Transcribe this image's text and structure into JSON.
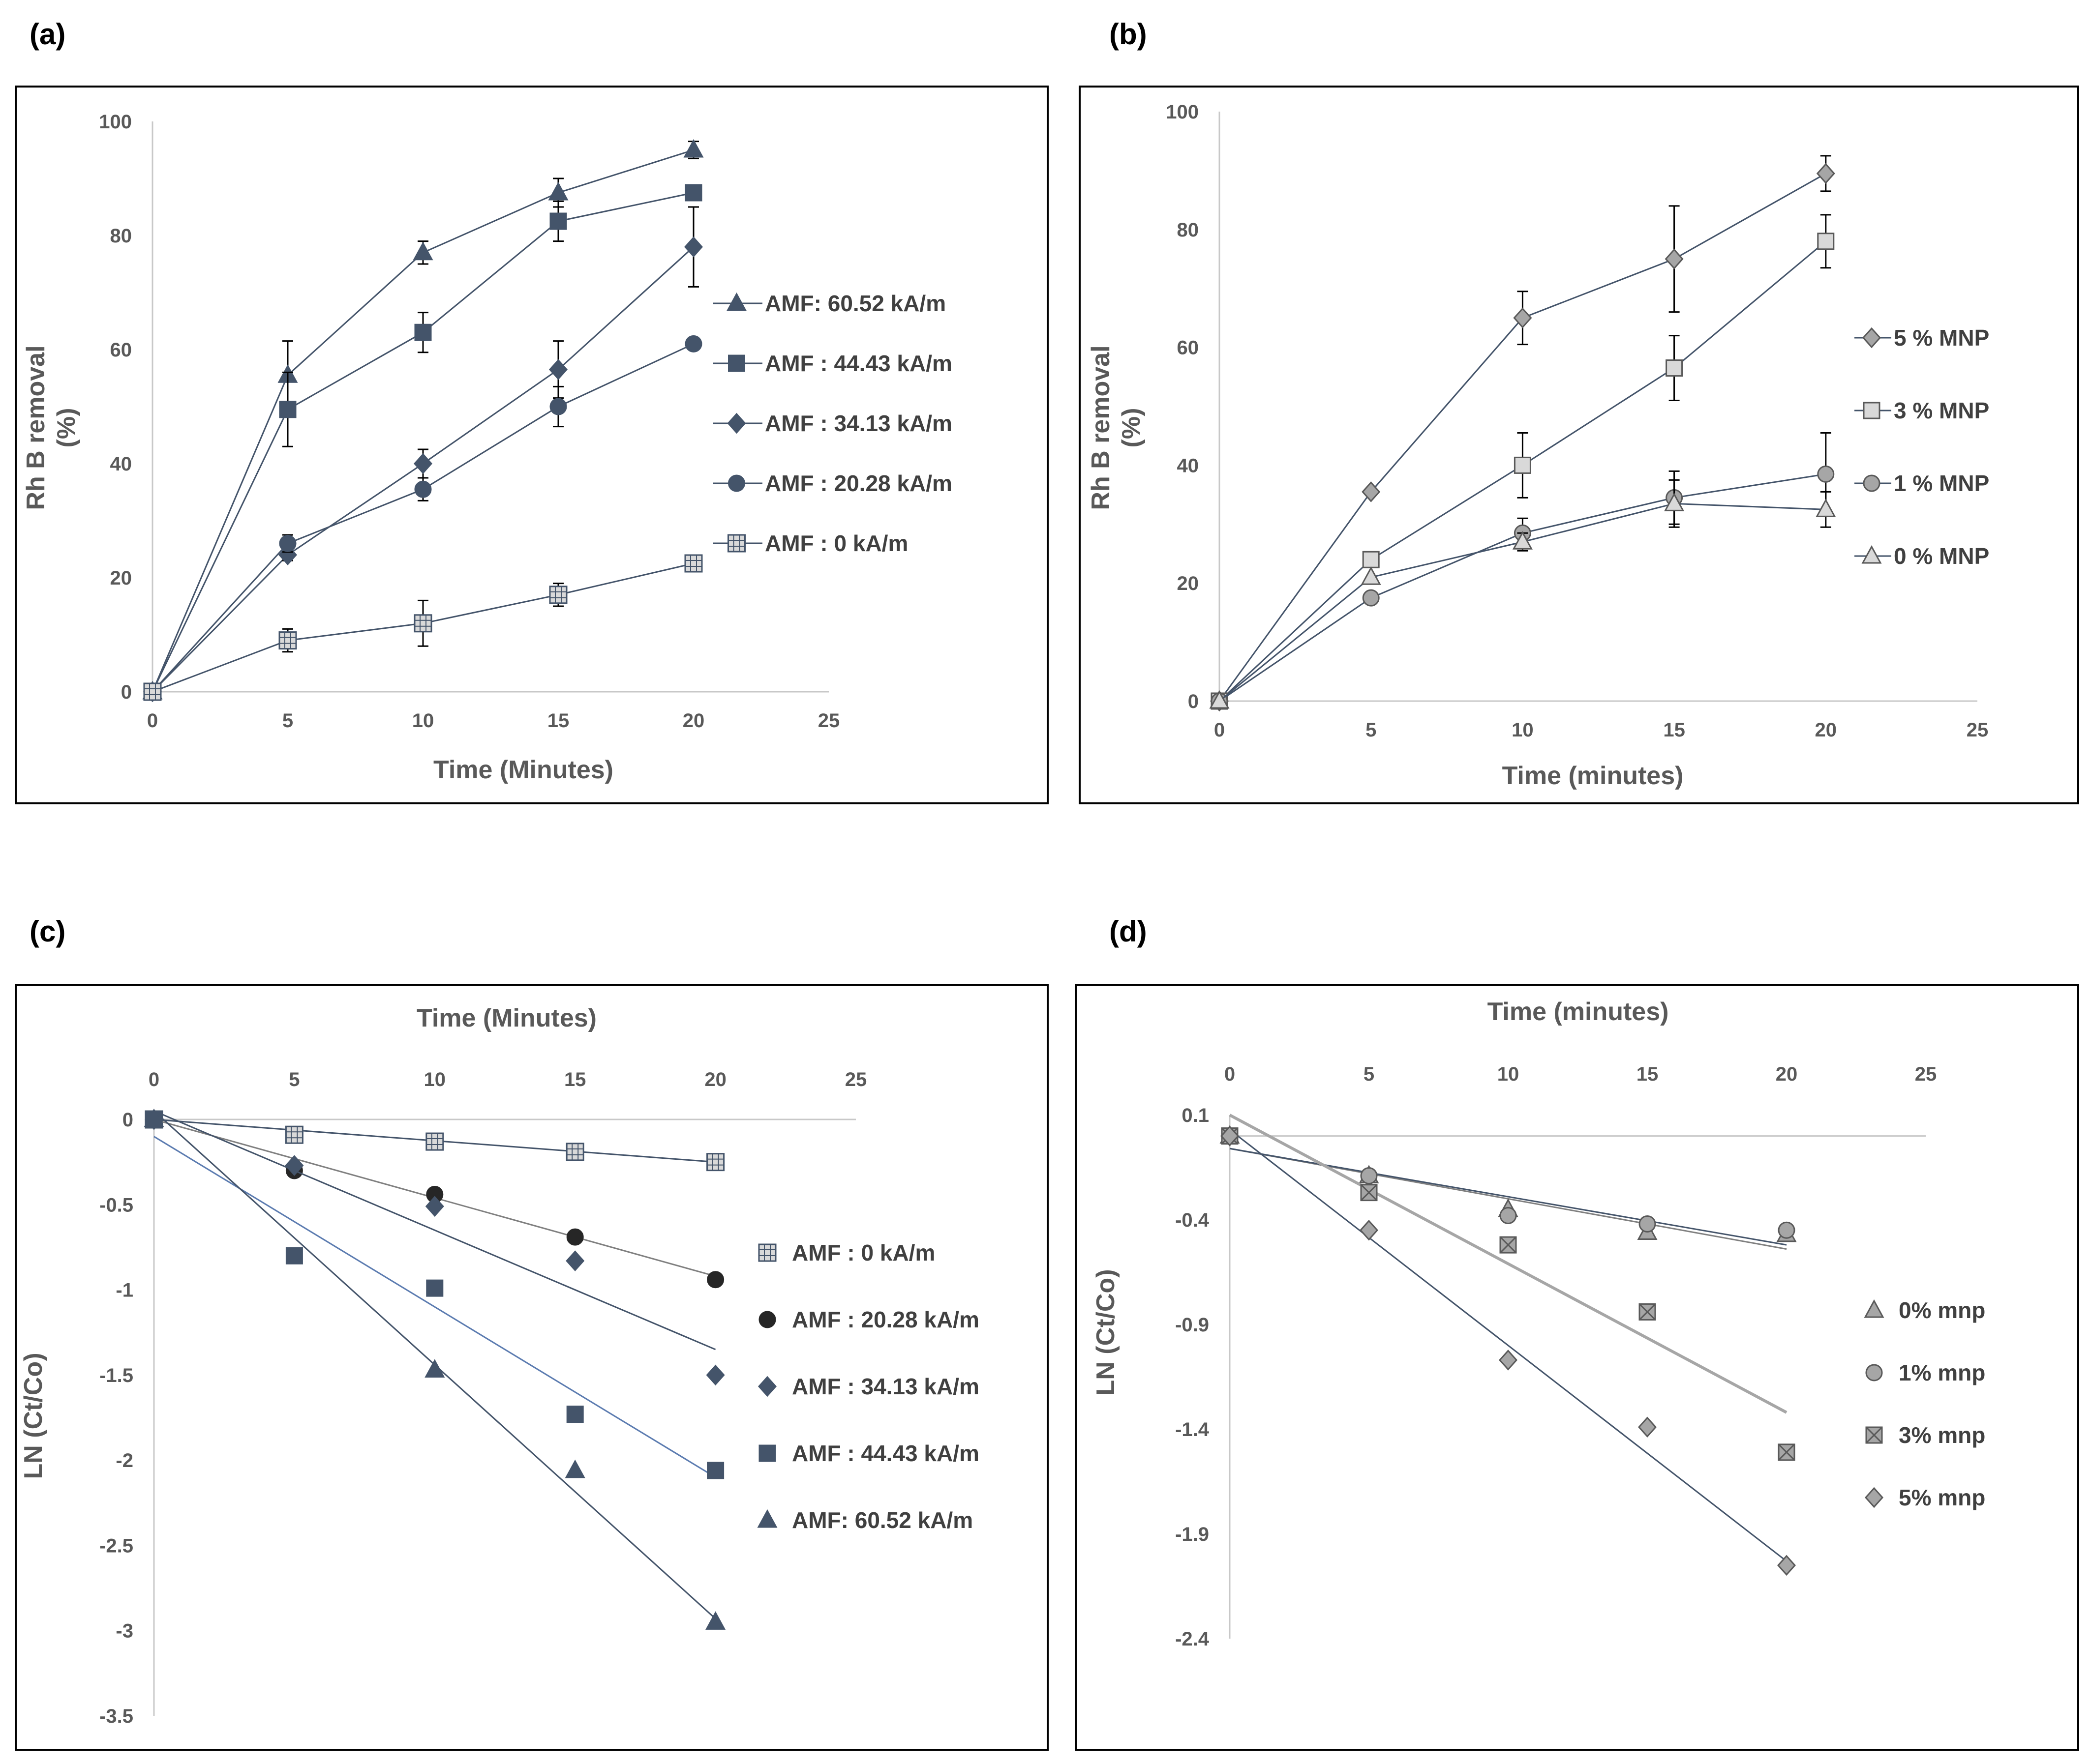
{
  "figure": {
    "colors": {
      "dark": "#44546a",
      "grey": "#7f7f7f",
      "light_fill": "#d9d9d9",
      "mid_fill": "#a6a6a6",
      "blue_line": "#5b7bb0",
      "axis": "#c8c8c8",
      "text": "#595959"
    }
  },
  "chart_data": [
    {
      "panel_label": "(a)",
      "type": "line",
      "xlabel": "Time (Minutes)",
      "ylabel": "Rh B removal\n(%)",
      "xlim": [
        0,
        25
      ],
      "ylim": [
        0,
        100
      ],
      "xticks": [
        0,
        5,
        10,
        15,
        20,
        25
      ],
      "yticks": [
        0,
        20,
        40,
        60,
        80,
        100
      ],
      "x_axis_position": "bottom",
      "legend_position": "right",
      "x": [
        0,
        5,
        10,
        15,
        20
      ],
      "series": [
        {
          "name": "AMF: 60.52 kA/m",
          "marker": "triangle",
          "fill": "dark",
          "values": [
            0,
            55.5,
            77,
            87.5,
            95
          ],
          "errors": [
            0,
            6,
            2,
            2.5,
            1.5
          ]
        },
        {
          "name": "AMF : 44.43 kA/m",
          "marker": "square",
          "fill": "dark",
          "values": [
            0,
            49.5,
            63,
            82.5,
            87.5
          ],
          "errors": [
            0,
            6.5,
            3.5,
            3.5,
            0
          ]
        },
        {
          "name": "AMF : 34.13 kA/m",
          "marker": "diamond",
          "fill": "dark",
          "values": [
            0,
            24,
            40,
            56.5,
            78
          ],
          "errors": [
            0,
            1,
            2.5,
            5,
            7
          ]
        },
        {
          "name": "AMF : 20.28 kA/m",
          "marker": "circle",
          "fill": "dark",
          "values": [
            0,
            26,
            35.5,
            50,
            61
          ],
          "errors": [
            0,
            1.5,
            2,
            3.5,
            0
          ]
        },
        {
          "name": "AMF : 0 kA/m",
          "marker": "gridsquare",
          "fill": "light",
          "values": [
            0,
            9,
            12,
            17,
            22.5
          ],
          "errors": [
            0,
            2,
            4,
            2,
            1
          ]
        }
      ]
    },
    {
      "panel_label": "(b)",
      "type": "line",
      "xlabel": "Time (minutes)",
      "ylabel": "Rh B removal\n(%)",
      "xlim": [
        0,
        25
      ],
      "ylim": [
        0,
        100
      ],
      "xticks": [
        0,
        5,
        10,
        15,
        20,
        25
      ],
      "yticks": [
        0,
        20,
        40,
        60,
        80,
        100
      ],
      "x_axis_position": "bottom",
      "legend_position": "right",
      "x": [
        0,
        5,
        10,
        15,
        20
      ],
      "series": [
        {
          "name": "5 % MNP",
          "marker": "diamond",
          "fill": "mid",
          "values": [
            0,
            35.5,
            65,
            75,
            89.5
          ],
          "errors": [
            0,
            0,
            4.5,
            9,
            3
          ]
        },
        {
          "name": "3 % MNP",
          "marker": "square",
          "fill": "light",
          "values": [
            0,
            24,
            40,
            56.5,
            78
          ],
          "errors": [
            0,
            0,
            5.5,
            5.5,
            4.5
          ]
        },
        {
          "name": "1 % MNP",
          "marker": "circle",
          "fill": "mid",
          "values": [
            0,
            17.5,
            28.5,
            34.5,
            38.5
          ],
          "errors": [
            0,
            0,
            2.5,
            4.5,
            7
          ]
        },
        {
          "name": "0 % MNP",
          "marker": "triangle",
          "fill": "light",
          "values": [
            0,
            21,
            27,
            33.5,
            32.5
          ],
          "errors": [
            0,
            0,
            1.5,
            4,
            3
          ]
        }
      ]
    },
    {
      "panel_label": "(c)",
      "type": "scatter",
      "xlabel": "Time (Minutes)",
      "ylabel": "LN (Ct/Co)",
      "xlim": [
        0,
        25
      ],
      "ylim": [
        -3.5,
        0
      ],
      "xticks": [
        0,
        5,
        10,
        15,
        20,
        25
      ],
      "yticks": [
        0,
        -0.5,
        -1,
        -1.5,
        -2,
        -2.5,
        -3,
        -3.5
      ],
      "x_axis_position": "top",
      "legend_position": "right",
      "x": [
        0,
        5,
        10,
        15,
        20
      ],
      "series": [
        {
          "name": "AMF : 0 kA/m",
          "marker": "gridsquare",
          "fill": "light",
          "values": [
            0,
            -0.09,
            -0.13,
            -0.19,
            -0.25
          ],
          "trend": [
            0,
            -0.0125
          ],
          "trend_color": "dark"
        },
        {
          "name": "AMF : 20.28 kA/m",
          "marker": "circle",
          "fill": "black",
          "values": [
            0,
            -0.3,
            -0.44,
            -0.69,
            -0.94
          ],
          "trend": [
            0,
            -0.046
          ],
          "trend_color": "grey"
        },
        {
          "name": "AMF : 34.13 kA/m",
          "marker": "diamond",
          "fill": "dark",
          "values": [
            0,
            -0.27,
            -0.51,
            -0.83,
            -1.5
          ],
          "trend": [
            0.05,
            -0.07
          ],
          "trend_color": "dark"
        },
        {
          "name": "AMF : 44.43 kA/m",
          "marker": "square",
          "fill": "dark",
          "values": [
            0,
            -0.8,
            -0.99,
            -1.73,
            -2.06
          ],
          "trend": [
            -0.1,
            -0.1
          ],
          "trend_color": "blue"
        },
        {
          "name": "AMF: 60.52 kA/m",
          "marker": "triangle",
          "fill": "dark",
          "values": [
            0,
            null,
            -1.47,
            -2.06,
            -2.95
          ],
          "trend": [
            0.05,
            -0.149
          ],
          "trend_color": "dark"
        }
      ]
    },
    {
      "panel_label": "(d)",
      "type": "scatter",
      "xlabel": "Time (minutes)",
      "ylabel": "LN (Ct/Co)",
      "xlim": [
        0,
        25
      ],
      "ylim": [
        -2.4,
        0.1
      ],
      "xticks": [
        0,
        5,
        10,
        15,
        20,
        25
      ],
      "yticks": [
        0.1,
        -0.4,
        -0.9,
        -1.4,
        -1.9,
        -2.4
      ],
      "x_axis_position": "top",
      "legend_position": "right",
      "x": [
        0,
        5,
        10,
        15,
        20
      ],
      "series": [
        {
          "name": "0% mnp",
          "marker": "triangle",
          "fill": "mid",
          "values": [
            0,
            -0.19,
            -0.35,
            -0.46,
            -0.47
          ],
          "trend": [
            -0.06,
            -0.024
          ],
          "trend_color": "grey"
        },
        {
          "name": "1% mnp",
          "marker": "circle",
          "fill": "mid",
          "values": [
            0,
            -0.19,
            -0.38,
            -0.42,
            -0.45
          ],
          "trend": [
            -0.06,
            -0.023
          ],
          "trend_color": "dark"
        },
        {
          "name": "3% mnp",
          "marker": "xsquare",
          "fill": "mid",
          "values": [
            0,
            -0.27,
            -0.52,
            -0.84,
            -1.51
          ],
          "trend": [
            0.1,
            -0.071
          ],
          "trend_color": "lightgrey"
        },
        {
          "name": "5% mnp",
          "marker": "diamond",
          "fill": "mid",
          "values": [
            0,
            -0.45,
            -1.07,
            -1.39,
            -2.05
          ],
          "trend": [
            0.03,
            -0.103
          ],
          "trend_color": "dark"
        }
      ]
    }
  ]
}
